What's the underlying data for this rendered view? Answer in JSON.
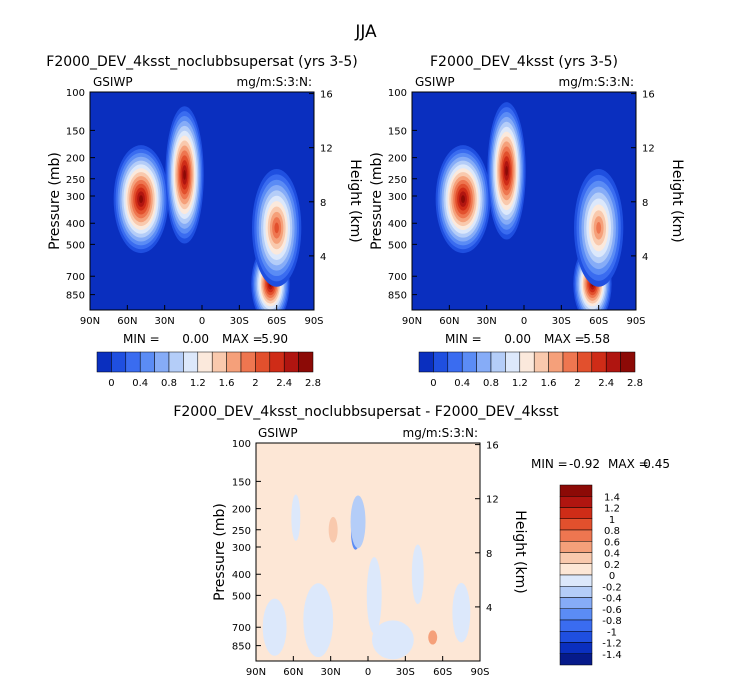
{
  "figure_title": "JJA",
  "chart_data": [
    {
      "type": "heatmap",
      "title": "F2000_DEV_4ksst_noclubbsupersat (yrs 3-5)",
      "variable": "GSIWP",
      "units": "mg/m:S:3:N:",
      "xlabel": "",
      "ylabel": "Pressure (mb)",
      "y2label": "Height (km)",
      "x_ticks": [
        "90N",
        "60N",
        "30N",
        "0",
        "30S",
        "60S",
        "90S"
      ],
      "y_ticks": [
        "100",
        "150",
        "200",
        "250",
        "300",
        "400",
        "500",
        "700",
        "850"
      ],
      "y2_ticks": [
        "16",
        "12",
        "8",
        "4"
      ],
      "min_label": "MIN =",
      "min_value": "0.00",
      "max_label": "MAX =",
      "max_value": "5.90",
      "colorbar_labels": [
        "0",
        "0.4",
        "0.8",
        "1.2",
        "1.6",
        "2",
        "2.4",
        "2.8"
      ],
      "blobs": [
        {
          "lat": 49,
          "p": 310,
          "value": 3.2,
          "spread_lat": 10,
          "spread_p": 0.55
        },
        {
          "lat": 14,
          "p": 240,
          "value": 4.6,
          "spread_lat": 7,
          "spread_p": 0.7
        },
        {
          "lat": -55,
          "p": 760,
          "value": 3.4,
          "spread_lat": 7,
          "spread_p": 0.4
        },
        {
          "lat": -60,
          "p": 420,
          "value": 2.2,
          "spread_lat": 9,
          "spread_p": 0.6
        }
      ]
    },
    {
      "type": "heatmap",
      "title": "F2000_DEV_4ksst (yrs 3-5)",
      "variable": "GSIWP",
      "units": "mg/m:S:3:N:",
      "xlabel": "",
      "ylabel": "Pressure (mb)",
      "y2label": "Height (km)",
      "x_ticks": [
        "90N",
        "60N",
        "30N",
        "0",
        "30S",
        "60S",
        "90S"
      ],
      "y_ticks": [
        "100",
        "150",
        "200",
        "250",
        "300",
        "400",
        "500",
        "700",
        "850"
      ],
      "y2_ticks": [
        "16",
        "12",
        "8",
        "4"
      ],
      "min_label": "MIN =",
      "min_value": "0.00",
      "max_label": "MAX =",
      "max_value": "5.58",
      "colorbar_labels": [
        "0",
        "0.4",
        "0.8",
        "1.2",
        "1.6",
        "2",
        "2.4",
        "2.8"
      ],
      "blobs": [
        {
          "lat": 49,
          "p": 310,
          "value": 3.1,
          "spread_lat": 10,
          "spread_p": 0.55
        },
        {
          "lat": 14,
          "p": 230,
          "value": 4.4,
          "spread_lat": 7,
          "spread_p": 0.7
        },
        {
          "lat": -55,
          "p": 760,
          "value": 3.2,
          "spread_lat": 7,
          "spread_p": 0.4
        },
        {
          "lat": -60,
          "p": 420,
          "value": 2.0,
          "spread_lat": 9,
          "spread_p": 0.6
        }
      ]
    },
    {
      "type": "heatmap",
      "title": "F2000_DEV_4ksst_noclubbsupersat - F2000_DEV_4ksst",
      "variable": "GSIWP",
      "units": "mg/m:S:3:N:",
      "xlabel": "",
      "ylabel": "Pressure (mb)",
      "y2label": "Height (km)",
      "x_ticks": [
        "90N",
        "60N",
        "30N",
        "0",
        "30S",
        "60S",
        "90S"
      ],
      "y_ticks": [
        "100",
        "150",
        "200",
        "250",
        "300",
        "400",
        "500",
        "700",
        "850"
      ],
      "y2_ticks": [
        "16",
        "12",
        "8",
        "4"
      ],
      "min_label": "MIN =",
      "min_value": "-0.92",
      "max_label": "MAX =",
      "max_value": "0.45",
      "colorbar_labels": [
        "1.4",
        "1.2",
        "1",
        "0.8",
        "0.6",
        "0.4",
        "0.2",
        "0",
        "-0.2",
        "-0.4",
        "-0.6",
        "-0.8",
        "-1",
        "-1.2",
        "-1.4"
      ]
    }
  ]
}
